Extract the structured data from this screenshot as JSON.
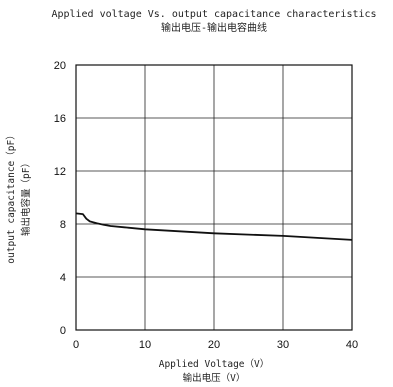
{
  "chart_data": {
    "type": "line",
    "title": "Applied voltage Vs. output capacitance characteristics",
    "subtitle": "输出电压-输出电容曲线",
    "xlabel": "Applied Voltage（V）",
    "xlabel_cn": "输出电压（V）",
    "ylabel": "output capacitance（pF）",
    "ylabel_cn": "输出电容量（pF）",
    "xlim": [
      0,
      40
    ],
    "ylim": [
      0,
      20
    ],
    "x_ticks": [
      "0",
      "10",
      "20",
      "30",
      "40"
    ],
    "y_ticks": [
      "0",
      "4",
      "8",
      "12",
      "16",
      "20"
    ],
    "grid": true,
    "series": [
      {
        "x": [
          0,
          1,
          1.5,
          2,
          3,
          4,
          5,
          7,
          10,
          15,
          20,
          25,
          30,
          35,
          40
        ],
        "values": [
          8.8,
          8.75,
          8.4,
          8.2,
          8.05,
          7.95,
          7.85,
          7.75,
          7.6,
          7.45,
          7.3,
          7.2,
          7.1,
          6.95,
          6.8
        ]
      }
    ]
  }
}
